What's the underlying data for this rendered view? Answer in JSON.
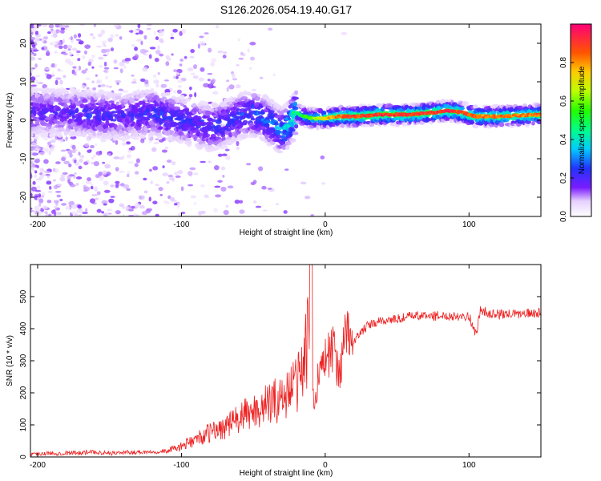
{
  "title": "S126.2026.054.19.40.G17",
  "chart_data": [
    {
      "type": "heatmap",
      "panel": "spectrogram",
      "xlabel": "Height of straight line (km)",
      "ylabel": "Frequency (Hz)",
      "xlim": [
        -205,
        150
      ],
      "ylim": [
        -25,
        25
      ],
      "x_ticks": [
        -200,
        -100,
        0,
        100
      ],
      "x_tick_labels": [
        "-200",
        "-100",
        "0",
        "100"
      ],
      "y_ticks": [
        -20,
        -10,
        0,
        10,
        20
      ],
      "y_tick_labels": [
        "-20",
        "-10",
        "0",
        "10",
        "20"
      ],
      "colorbar": {
        "label": "Normalized spectral amplitude",
        "range": [
          0,
          1
        ],
        "ticks": [
          0.0,
          0.2,
          0.4,
          0.6,
          0.8
        ],
        "tick_labels": [
          "0.0",
          "0.2",
          "0.4",
          "0.6",
          "0.8"
        ]
      },
      "ridge": {
        "x": [
          -200,
          -180,
          -160,
          -140,
          -120,
          -100,
          -90,
          -80,
          -70,
          -60,
          -50,
          -40,
          -30,
          -25,
          -20,
          -15,
          -10,
          0,
          10,
          20,
          40,
          60,
          75,
          85,
          95,
          105,
          120,
          150
        ],
        "freq": [
          2,
          2,
          1.5,
          1,
          2,
          0,
          -1,
          -2,
          -1,
          1,
          2,
          0,
          -3,
          -1,
          2,
          1,
          0.5,
          0.5,
          1,
          1,
          1.5,
          1.5,
          2,
          2.5,
          2,
          1,
          1,
          1.5
        ],
        "amplitude": [
          0.15,
          0.15,
          0.2,
          0.15,
          0.2,
          0.2,
          0.2,
          0.2,
          0.2,
          0.2,
          0.25,
          0.25,
          0.3,
          0.35,
          0.45,
          0.55,
          0.6,
          0.75,
          0.85,
          0.9,
          0.92,
          0.92,
          0.92,
          0.95,
          0.9,
          0.85,
          0.85,
          0.85
        ]
      }
    },
    {
      "type": "line",
      "panel": "snr",
      "xlabel": "Height of straight line (km)",
      "ylabel": "SNR (10 * v/v)",
      "xlim": [
        -205,
        150
      ],
      "ylim": [
        0,
        600
      ],
      "x_ticks": [
        -200,
        -100,
        0,
        100
      ],
      "x_tick_labels": [
        "-200",
        "-100",
        "0",
        "100"
      ],
      "y_ticks": [
        0,
        100,
        200,
        300,
        400,
        500
      ],
      "y_tick_labels": [
        "0",
        "100",
        "200",
        "300",
        "400",
        "500"
      ],
      "series": [
        {
          "name": "SNR",
          "color": "#ee2222",
          "x": [
            -205,
            -180,
            -160,
            -150,
            -130,
            -110,
            -100,
            -90,
            -80,
            -70,
            -60,
            -50,
            -40,
            -30,
            -20,
            -15,
            -10,
            -8,
            -5,
            0,
            5,
            10,
            15,
            20,
            25,
            30,
            40,
            50,
            60,
            80,
            100,
            105,
            108,
            115,
            130,
            150
          ],
          "y": [
            10,
            12,
            15,
            12,
            15,
            18,
            30,
            50,
            70,
            85,
            110,
            130,
            150,
            170,
            210,
            260,
            420,
            130,
            250,
            300,
            330,
            260,
            380,
            360,
            390,
            410,
            425,
            430,
            440,
            440,
            440,
            380,
            460,
            445,
            445,
            450
          ]
        }
      ]
    }
  ]
}
